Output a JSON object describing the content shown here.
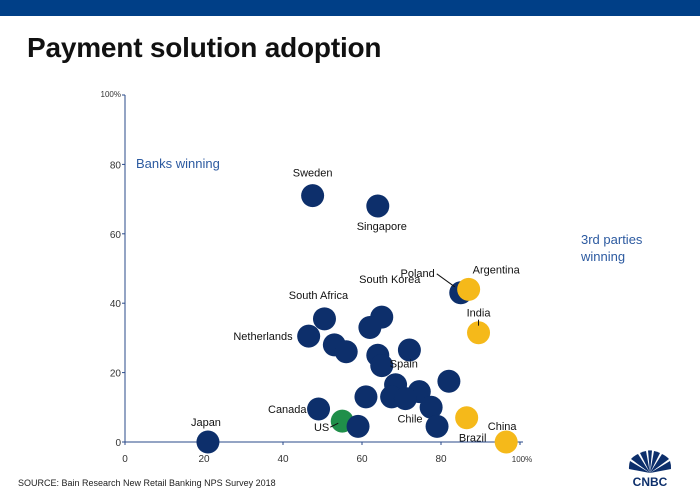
{
  "header": {
    "title": "Payment solution adoption"
  },
  "footer": {
    "source": "SOURCE: Bain Research New Retail Banking NPS Survey 2018",
    "logo_text": "CNBC"
  },
  "colors": {
    "bank": "#0d2f6b",
    "third_party": "#f5b91a",
    "us": "#1f8f4a",
    "top_bar": "#003f87",
    "axis": "#2a4a8a",
    "zone_label": "#2c5aa0"
  },
  "chart_data": {
    "type": "scatter",
    "title": "Payment solution adoption",
    "xlabel": "",
    "ylabel": "",
    "xlim": [
      0,
      100
    ],
    "ylim": [
      0,
      100
    ],
    "x_ticks": [
      "0",
      "20",
      "40",
      "60",
      "80",
      "100%"
    ],
    "y_ticks": [
      "0",
      "20",
      "40",
      "60",
      "80",
      "100%"
    ],
    "grid": false,
    "annotations": [
      "Banks winning",
      "3rd parties\nwinning"
    ],
    "points": [
      {
        "x": 47.5,
        "y": 71,
        "group": "bank",
        "label": "Sweden"
      },
      {
        "x": 64,
        "y": 68,
        "group": "bank",
        "label": "Singapore"
      },
      {
        "x": 85,
        "y": 43,
        "group": "bank",
        "label": "Poland"
      },
      {
        "x": 87,
        "y": 44,
        "group": "third_party",
        "label": "Argentina"
      },
      {
        "x": 50.5,
        "y": 35.5,
        "group": "bank",
        "label": "South Africa"
      },
      {
        "x": 65,
        "y": 36,
        "group": "bank",
        "label": "South Korea"
      },
      {
        "x": 62,
        "y": 33,
        "group": "bank",
        "label": ""
      },
      {
        "x": 46.5,
        "y": 30.5,
        "group": "bank",
        "label": "Netherlands"
      },
      {
        "x": 89.5,
        "y": 31.5,
        "group": "third_party",
        "label": "India"
      },
      {
        "x": 53,
        "y": 28,
        "group": "bank",
        "label": ""
      },
      {
        "x": 56,
        "y": 26,
        "group": "bank",
        "label": ""
      },
      {
        "x": 72,
        "y": 26.5,
        "group": "bank",
        "label": ""
      },
      {
        "x": 64,
        "y": 25,
        "group": "bank",
        "label": ""
      },
      {
        "x": 65,
        "y": 22,
        "group": "bank",
        "label": "Spain"
      },
      {
        "x": 82,
        "y": 17.5,
        "group": "bank",
        "label": ""
      },
      {
        "x": 68.5,
        "y": 16.5,
        "group": "bank",
        "label": ""
      },
      {
        "x": 74.5,
        "y": 14.5,
        "group": "bank",
        "label": ""
      },
      {
        "x": 61,
        "y": 13,
        "group": "bank",
        "label": ""
      },
      {
        "x": 67.5,
        "y": 13,
        "group": "bank",
        "label": ""
      },
      {
        "x": 71,
        "y": 12.5,
        "group": "bank",
        "label": "Chile"
      },
      {
        "x": 77.5,
        "y": 10,
        "group": "bank",
        "label": ""
      },
      {
        "x": 49,
        "y": 9.5,
        "group": "bank",
        "label": "Canada"
      },
      {
        "x": 86.5,
        "y": 7,
        "group": "third_party",
        "label": "Brazil"
      },
      {
        "x": 79,
        "y": 4.5,
        "group": "bank",
        "label": ""
      },
      {
        "x": 55,
        "y": 6,
        "group": "us",
        "label": "US"
      },
      {
        "x": 59,
        "y": 4.5,
        "group": "bank",
        "label": ""
      },
      {
        "x": 21,
        "y": 0,
        "group": "bank",
        "label": "Japan"
      },
      {
        "x": 96.5,
        "y": 0,
        "group": "third_party",
        "label": "China"
      }
    ]
  }
}
